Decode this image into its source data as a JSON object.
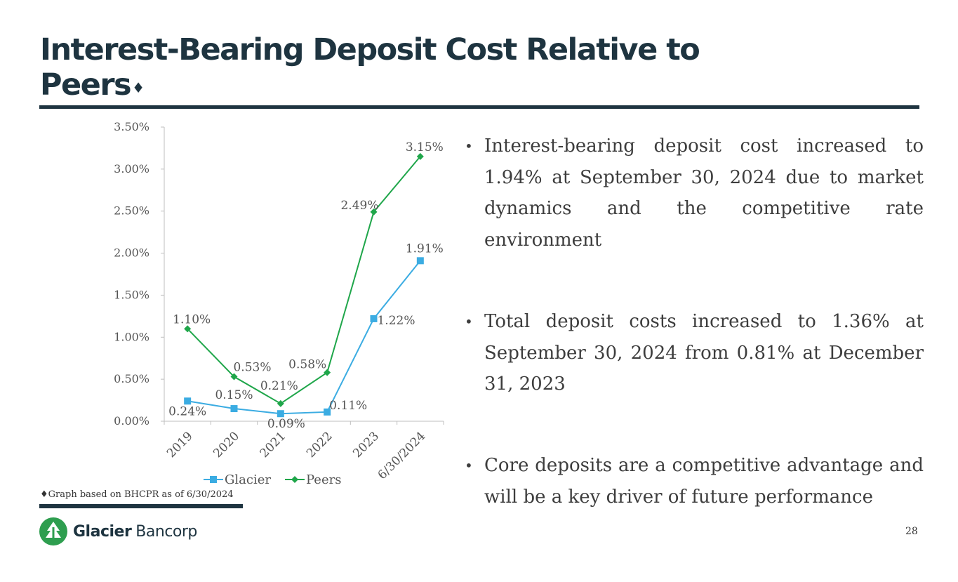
{
  "slide": {
    "title_line1": "Interest-Bearing Deposit Cost Relative to",
    "title_line2": "Peers",
    "title_mark": "♦",
    "footnote": "♦Graph based on BHCPR as of 6/30/2024",
    "page_number": "28",
    "logo": {
      "bold": "Glacier",
      "light": "Bancorp"
    },
    "colors": {
      "dark": "#1e3440",
      "glacier": "#3bace2",
      "peers": "#1fa64a",
      "logo_green": "#2e9e4f"
    }
  },
  "bullets": [
    "Interest-bearing deposit cost increased to 1.94% at September 30, 2024 due to market dynamics and the competitive rate environment",
    "Total deposit costs increased to 1.36% at September 30, 2024 from 0.81% at December 31, 2023",
    "Core deposits are a competitive advantage and will be a key driver of future performance"
  ],
  "chart_data": {
    "type": "line",
    "categories": [
      "2019",
      "2020",
      "2021",
      "2022",
      "2023",
      "6/30/2024"
    ],
    "series": [
      {
        "name": "Glacier",
        "values": [
          0.24,
          0.15,
          0.09,
          0.11,
          1.22,
          1.91
        ],
        "labels": [
          "0.24%",
          "0.15%",
          "0.09%",
          "0.11%",
          "1.22%",
          "1.91%"
        ],
        "color": "#3bace2",
        "marker": "square"
      },
      {
        "name": "Peers",
        "values": [
          1.1,
          0.53,
          0.21,
          0.58,
          2.49,
          3.15
        ],
        "labels": [
          "1.10%",
          "0.53%",
          "0.21%",
          "0.58%",
          "2.49%",
          "3.15%"
        ],
        "color": "#1fa64a",
        "marker": "diamond"
      }
    ],
    "ylim": [
      0,
      3.5
    ],
    "yticks": [
      "0.00%",
      "0.50%",
      "1.00%",
      "1.50%",
      "2.00%",
      "2.50%",
      "3.00%",
      "3.50%"
    ],
    "grid": false,
    "legend": "bottom"
  }
}
